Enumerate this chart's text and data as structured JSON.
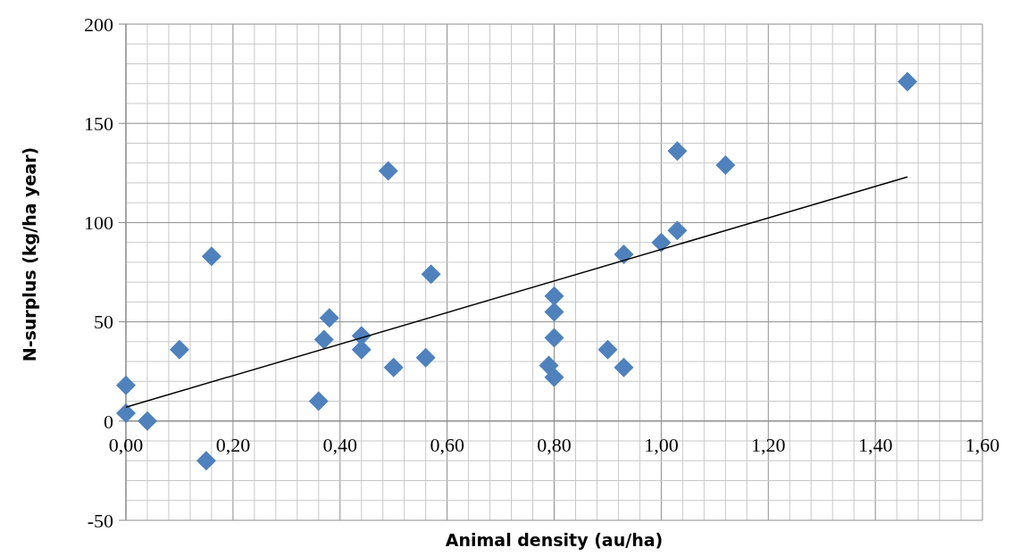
{
  "chart_data": {
    "type": "scatter",
    "xlabel": "Animal density (au/ha)",
    "ylabel": "N-surplus (kg/ha year)",
    "xlim": [
      0,
      1.6
    ],
    "ylim": [
      -50,
      200
    ],
    "xticks": [
      {
        "value": 0,
        "label": "0,00"
      },
      {
        "value": 0.04,
        "label": null
      },
      {
        "value": 0.08,
        "label": null
      },
      {
        "value": 0.12,
        "label": null
      },
      {
        "value": 0.16,
        "label": null
      },
      {
        "value": 0.2,
        "label": "0,20"
      },
      {
        "value": 0.24,
        "label": null
      },
      {
        "value": 0.28,
        "label": null
      },
      {
        "value": 0.32,
        "label": null
      },
      {
        "value": 0.36,
        "label": null
      },
      {
        "value": 0.4,
        "label": "0,40"
      },
      {
        "value": 0.44,
        "label": null
      },
      {
        "value": 0.48,
        "label": null
      },
      {
        "value": 0.52,
        "label": null
      },
      {
        "value": 0.56,
        "label": null
      },
      {
        "value": 0.6,
        "label": "0,60"
      },
      {
        "value": 0.64,
        "label": null
      },
      {
        "value": 0.68,
        "label": null
      },
      {
        "value": 0.72,
        "label": null
      },
      {
        "value": 0.76,
        "label": null
      },
      {
        "value": 0.8,
        "label": "0,80"
      },
      {
        "value": 0.84,
        "label": null
      },
      {
        "value": 0.88,
        "label": null
      },
      {
        "value": 0.92,
        "label": null
      },
      {
        "value": 0.96,
        "label": null
      },
      {
        "value": 1,
        "label": "1,00"
      },
      {
        "value": 1.04,
        "label": null
      },
      {
        "value": 1.08,
        "label": null
      },
      {
        "value": 1.12,
        "label": null
      },
      {
        "value": 1.16,
        "label": null
      },
      {
        "value": 1.2,
        "label": "1,20"
      },
      {
        "value": 1.24,
        "label": null
      },
      {
        "value": 1.28,
        "label": null
      },
      {
        "value": 1.32,
        "label": null
      },
      {
        "value": 1.36,
        "label": null
      },
      {
        "value": 1.4,
        "label": "1,40"
      },
      {
        "value": 1.44,
        "label": null
      },
      {
        "value": 1.48,
        "label": null
      },
      {
        "value": 1.52,
        "label": null
      },
      {
        "value": 1.56,
        "label": null
      },
      {
        "value": 1.6,
        "label": "1,60"
      }
    ],
    "yticks": [
      -50,
      {
        "value": -40,
        "label": null
      },
      {
        "value": -30,
        "label": null
      },
      {
        "value": -20,
        "label": null
      },
      {
        "value": -10,
        "label": null
      },
      0,
      {
        "value": 10,
        "label": null
      },
      {
        "value": 20,
        "label": null
      },
      {
        "value": 30,
        "label": null
      },
      {
        "value": 40,
        "label": null
      },
      50,
      {
        "value": 60,
        "label": null
      },
      {
        "value": 70,
        "label": null
      },
      {
        "value": 80,
        "label": null
      },
      {
        "value": 90,
        "label": null
      },
      100,
      {
        "value": 110,
        "label": null
      },
      {
        "value": 120,
        "label": null
      },
      {
        "value": 130,
        "label": null
      },
      {
        "value": 140,
        "label": null
      },
      150,
      {
        "value": 160,
        "label": null
      },
      {
        "value": 170,
        "label": null
      },
      {
        "value": 180,
        "label": null
      },
      {
        "value": 190,
        "label": null
      },
      200
    ],
    "grid": true,
    "marker": "diamond",
    "series": [
      {
        "color": "#4f81bd",
        "x": [
          0,
          0,
          0.04,
          0.1,
          0.16,
          0.15,
          0.36,
          0.37,
          0.38,
          0.44,
          0.44,
          0.49,
          0.5,
          0.56,
          0.57,
          0.8,
          0.8,
          0.8,
          0.79,
          0.8,
          0.9,
          0.93,
          0.93,
          1,
          1.03,
          1.03,
          1.12,
          1.46
        ],
        "values": [
          18,
          4,
          0,
          36,
          83,
          -20,
          10,
          41,
          52,
          43,
          36,
          126,
          27,
          32,
          74,
          63,
          55,
          42,
          28,
          22,
          36,
          27,
          84,
          90,
          96,
          136,
          129,
          171
        ]
      },
      {
        "type": "line",
        "color": "#000000",
        "marker": "none",
        "x": [
          0,
          1.46
        ],
        "values": [
          7,
          123
        ]
      }
    ]
  }
}
